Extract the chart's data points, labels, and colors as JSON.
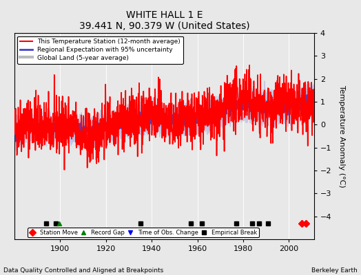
{
  "title": "WHITE HALL 1 E",
  "subtitle": "39.441 N, 90.379 W (United States)",
  "ylabel": "Temperature Anomaly (°C)",
  "footer_left": "Data Quality Controlled and Aligned at Breakpoints",
  "footer_right": "Berkeley Earth",
  "year_start": 1880,
  "year_end": 2011,
  "ylim": [
    -5,
    4
  ],
  "yticks": [
    -4,
    -3,
    -2,
    -1,
    0,
    1,
    2,
    3,
    4
  ],
  "xticks": [
    1900,
    1920,
    1940,
    1960,
    1980,
    2000
  ],
  "station_moves": [
    2005.5,
    2007.5
  ],
  "record_gaps": [
    1899.5
  ],
  "obs_changes": [],
  "empirical_breaks": [
    1894,
    1898,
    1935,
    1957,
    1962,
    1977,
    1984,
    1987,
    1991
  ],
  "bg_color": "#e8e8e8",
  "plot_bg": "#e8e8e8",
  "uncertainty_color": "#aaaadd",
  "legend_entries": [
    {
      "label": "This Temperature Station (12-month average)",
      "color": "#ff0000",
      "lw": 1.2
    },
    {
      "label": "Regional Expectation with 95% uncertainty",
      "color": "#4444cc",
      "lw": 1.5
    },
    {
      "label": "Global Land (5-year average)",
      "color": "#bbbbbb",
      "lw": 3.0
    }
  ]
}
